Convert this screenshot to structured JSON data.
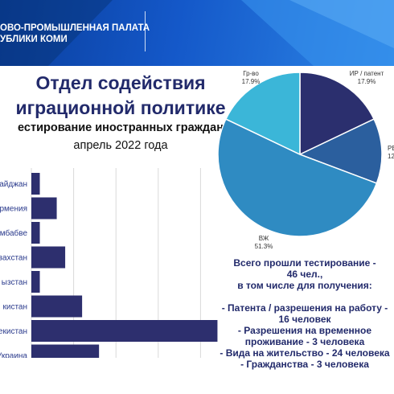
{
  "header": {
    "title_line1": "ОВО-ПРОМЫШЛЕННАЯ ПАЛАТА",
    "title_line2": "УБЛИКИ КОМИ"
  },
  "texts": {
    "dept_line1": "Отдел содействия",
    "dept_line2": "играционной политике",
    "subtitle": "естирование иностранных граждан",
    "period": "апрель 2022 года"
  },
  "summary": {
    "line1": "Всего  прошли тестирование -",
    "line2": "46 чел.,",
    "line3": "в том числе для получения:",
    "line4": "- Патента / разрешения на работу -",
    "line5": "16 человек",
    "line6": "- Разрешения на временное",
    "line7": "проживание - 3 человека",
    "line8": "- Вида на жительство - 24 человека",
    "line9": "- Гражданства - 3 человека"
  },
  "colors": {
    "header": "#1458c9",
    "bar": "#2d2f6e",
    "pie_ip": "#2b2f6e",
    "pie_rvp": "#2b5f9e",
    "pie_vzh": "#2f8bc2",
    "pie_grvo": "#3bb6d8",
    "grid": "#d9d9d9"
  },
  "chart_data": [
    {
      "type": "bar",
      "orientation": "horizontal",
      "categories": [
        "айджан",
        "рмения",
        "мбабве",
        "захстан",
        "ызстан",
        "кистан",
        "екистан",
        "Украина"
      ],
      "values": [
        1,
        3,
        1,
        4,
        1,
        6,
        22,
        8
      ],
      "x_ticks": [
        "0",
        "5",
        "10",
        "15",
        "20",
        "25"
      ],
      "xlim": [
        0,
        25
      ],
      "grid": true
    },
    {
      "type": "pie",
      "slices": [
        {
          "label": "ИР / патент",
          "pct": "17.9%",
          "value": 17.9
        },
        {
          "label": "РВ",
          "pct": "12.",
          "value": 12.8
        },
        {
          "label": "ВЖ",
          "pct": "51.3%",
          "value": 51.3
        },
        {
          "label": "Гр-во",
          "pct": "17.9%",
          "value": 17.9
        }
      ]
    }
  ]
}
